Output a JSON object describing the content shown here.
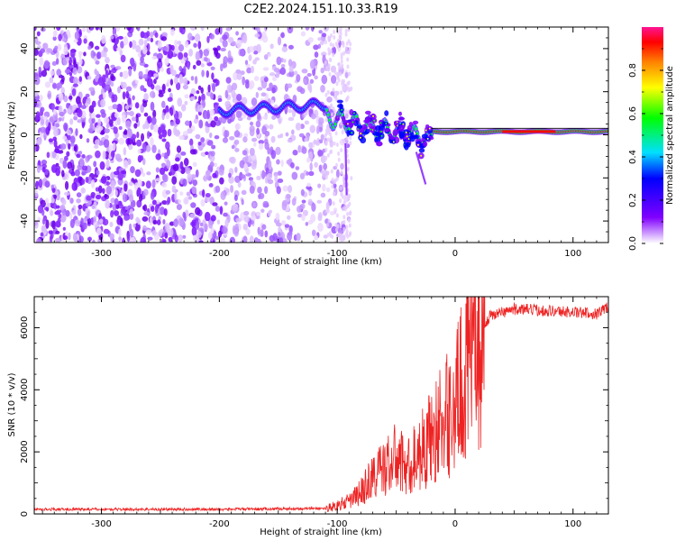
{
  "title": "C2E2.2024.151.10.33.R19",
  "chart_data": [
    {
      "type": "heatmap",
      "title": "C2E2.2024.151.10.33.R19",
      "xlabel": "Height of straight line (km)",
      "ylabel": "Frequency (Hz)",
      "xlim": [
        -357,
        130
      ],
      "ylim": [
        -50,
        50
      ],
      "xticks": [
        -300,
        -200,
        -100,
        0,
        100
      ],
      "yticks": [
        -40,
        -20,
        0,
        20,
        40
      ],
      "colorbar": {
        "label": "Normalized spectral amplitude",
        "range": [
          0,
          1
        ],
        "ticks": [
          0.0,
          0.2,
          0.4,
          0.6,
          0.8
        ],
        "tick_labels": [
          "0.0",
          "0.2",
          "0.4",
          "0.6",
          "0.8"
        ]
      },
      "features": {
        "scatter_region_km": [
          -357,
          -90
        ],
        "wave_start_km": -200,
        "wave_start_freq_hz": 11,
        "wave_mid_freq_hz": 14,
        "steady_freq_hz": 1.5,
        "steady_start_km": -20
      }
    },
    {
      "type": "line",
      "xlabel": "Height of straight line (km)",
      "ylabel": "SNR (10 * v/v)",
      "xlim": [
        -357,
        130
      ],
      "ylim": [
        0,
        7000
      ],
      "xticks": [
        -300,
        -200,
        -100,
        0,
        100
      ],
      "yticks": [
        0,
        2000,
        4000,
        6000
      ],
      "line_color": "#ee2222",
      "series": [
        {
          "name": "SNR",
          "x": [
            -357,
            -300,
            -200,
            -110,
            -100,
            -90,
            -80,
            -70,
            -60,
            -50,
            -40,
            -30,
            -20,
            -10,
            0,
            10,
            20,
            30,
            50,
            80,
            100,
            120,
            130
          ],
          "y": [
            150,
            150,
            150,
            180,
            280,
            400,
            700,
            1200,
            1500,
            1800,
            1500,
            2000,
            2500,
            3000,
            3500,
            4800,
            5800,
            6400,
            6600,
            6550,
            6500,
            6450,
            6700
          ]
        }
      ]
    }
  ]
}
